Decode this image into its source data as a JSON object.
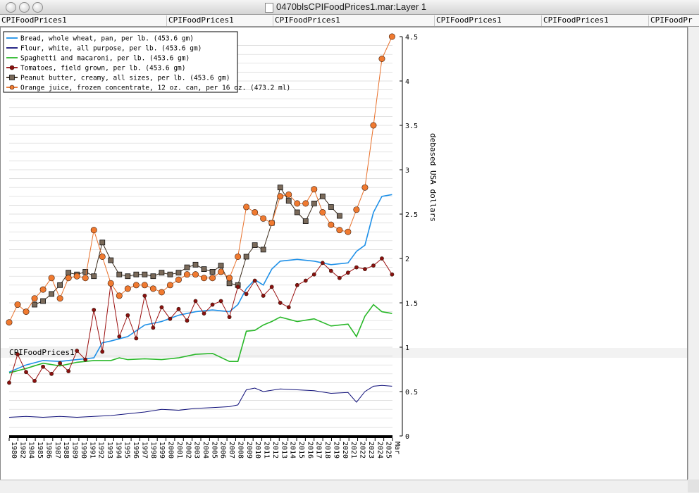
{
  "window": {
    "title": "0470blsCPIFoodPrices1.mar:Layer 1"
  },
  "tabs": [
    "CPIFoodPrices1",
    "CPIFoodPrices1",
    "CPIFoodPrices1",
    "CPIFoodPrices1",
    "CPIFoodPrices1",
    "CPIFoodPr"
  ],
  "stripe_label": "CPIFoodPrices1",
  "chart_data": {
    "type": "line",
    "ylabel": "debased USA dollars",
    "ylim": [
      0,
      4.5
    ],
    "yticks": [
      0,
      0.5,
      1,
      1.5,
      2,
      2.5,
      3,
      3.5,
      4,
      4.5
    ],
    "xlim": [
      1980,
      2025.25
    ],
    "xtick_labels": [
      "1980",
      "1982",
      "1984",
      "1985",
      "1986",
      "1987",
      "1988",
      "1989",
      "1990",
      "1991",
      "1992",
      "1993",
      "1994",
      "1995",
      "1996",
      "1997",
      "1998",
      "1999",
      "2000",
      "2001",
      "2002",
      "2003",
      "2004",
      "2005",
      "2006",
      "2007",
      "2008",
      "2009",
      "2010",
      "2011",
      "2012",
      "2013",
      "2014",
      "2015",
      "2016",
      "2017",
      "2018",
      "2019",
      "2020",
      "2021",
      "2022",
      "2023",
      "2024",
      "2025",
      "Mar"
    ],
    "legend_position": "top-left",
    "grid": true,
    "series": [
      {
        "name": "Bread, whole wheat, pan, per lb. (453.6 gm)",
        "color": "#1e90e8",
        "marker": "none",
        "x": [
          1980,
          1982,
          1984,
          1986,
          1988,
          1990,
          1991,
          1992,
          1994,
          1996,
          1998,
          2000,
          2002,
          2004,
          2006,
          2007,
          2008,
          2009,
          2010,
          2011,
          2012,
          2014,
          2016,
          2018,
          2020,
          2021,
          2022,
          2023,
          2024,
          2025.2
        ],
        "y": [
          0.72,
          0.8,
          0.85,
          0.84,
          0.86,
          0.88,
          1.05,
          1.07,
          1.12,
          1.25,
          1.29,
          1.36,
          1.4,
          1.42,
          1.4,
          1.48,
          1.66,
          1.76,
          1.7,
          1.88,
          1.97,
          1.99,
          1.97,
          1.93,
          1.95,
          2.08,
          2.15,
          2.52,
          2.7,
          2.72
        ]
      },
      {
        "name": "Flour, white, all purpose, per lb. (453.6 gm)",
        "color": "#10107a",
        "marker": "none",
        "x": [
          1980,
          1982,
          1984,
          1986,
          1988,
          1990,
          1992,
          1994,
          1996,
          1998,
          2000,
          2002,
          2004,
          2006,
          2007,
          2008,
          2009,
          2010,
          2012,
          2014,
          2016,
          2018,
          2020,
          2021,
          2022,
          2023,
          2024,
          2025.2
        ],
        "y": [
          0.21,
          0.22,
          0.21,
          0.22,
          0.21,
          0.22,
          0.23,
          0.25,
          0.27,
          0.3,
          0.29,
          0.31,
          0.32,
          0.33,
          0.35,
          0.52,
          0.54,
          0.5,
          0.53,
          0.52,
          0.51,
          0.48,
          0.49,
          0.38,
          0.5,
          0.56,
          0.57,
          0.56
        ]
      },
      {
        "name": "Spaghetti and macaroni, per lb. (453.6 gm)",
        "color": "#2ab82a",
        "marker": "none",
        "x": [
          1980,
          1982,
          1984,
          1986,
          1988,
          1990,
          1992,
          1993,
          1994,
          1996,
          1998,
          2000,
          2002,
          2004,
          2006,
          2007,
          2008,
          2009,
          2010,
          2011,
          2012,
          2014,
          2016,
          2018,
          2020,
          2021,
          2022,
          2023,
          2024,
          2025.2
        ],
        "y": [
          0.71,
          0.76,
          0.82,
          0.79,
          0.83,
          0.85,
          0.85,
          0.88,
          0.86,
          0.87,
          0.86,
          0.88,
          0.92,
          0.93,
          0.84,
          0.84,
          1.18,
          1.19,
          1.25,
          1.29,
          1.34,
          1.29,
          1.32,
          1.24,
          1.26,
          1.12,
          1.35,
          1.48,
          1.4,
          1.38
        ]
      },
      {
        "name": "Tomatoes, field grown, per lb. (453.6 gm)",
        "color": "#9a0f0f",
        "marker": "circle",
        "x": [
          1980,
          1981,
          1982,
          1983,
          1984,
          1985,
          1986,
          1987,
          1988,
          1989,
          1990,
          1991,
          1992,
          1993,
          1994,
          1995,
          1996,
          1997,
          1998,
          1999,
          2000,
          2001,
          2002,
          2003,
          2004,
          2005,
          2006,
          2007,
          2008,
          2009,
          2010,
          2011,
          2012,
          2013,
          2014,
          2015,
          2016,
          2017,
          2018,
          2019,
          2020,
          2021,
          2022,
          2023,
          2024,
          2025.2
        ],
        "y": [
          0.6,
          0.92,
          0.72,
          0.62,
          0.78,
          0.7,
          0.82,
          0.73,
          0.96,
          0.86,
          1.42,
          0.95,
          1.72,
          1.12,
          1.36,
          1.1,
          1.58,
          1.22,
          1.45,
          1.32,
          1.43,
          1.3,
          1.52,
          1.38,
          1.48,
          1.52,
          1.34,
          1.68,
          1.6,
          1.75,
          1.58,
          1.68,
          1.5,
          1.45,
          1.7,
          1.75,
          1.82,
          1.95,
          1.86,
          1.78,
          1.84,
          1.9,
          1.88,
          1.92,
          2.0,
          1.82
        ]
      },
      {
        "name": "Peanut butter, creamy, all sizes, per lb. (453.6 gm)",
        "color": "#3a2a1a",
        "marker": "square",
        "x": [
          1983,
          1984,
          1985,
          1986,
          1987,
          1988,
          1989,
          1990,
          1991,
          1992,
          1993,
          1994,
          1995,
          1996,
          1997,
          1998,
          1999,
          2000,
          2001,
          2002,
          2003,
          2004,
          2005,
          2006,
          2007,
          2008,
          2009,
          2010,
          2011,
          2012,
          2013,
          2014,
          2015,
          2016,
          2017,
          2018,
          2019
        ],
        "y": [
          1.48,
          1.52,
          1.6,
          1.7,
          1.84,
          1.82,
          1.85,
          1.8,
          2.18,
          1.98,
          1.82,
          1.8,
          1.82,
          1.82,
          1.8,
          1.84,
          1.82,
          1.84,
          1.9,
          1.93,
          1.88,
          1.85,
          1.92,
          1.72,
          1.7,
          2.02,
          2.15,
          2.1,
          2.4,
          2.8,
          2.65,
          2.52,
          2.42,
          2.62,
          2.7,
          2.58,
          2.48
        ]
      },
      {
        "name": "Orange juice, frozen concentrate, 12 oz. can, per 16 oz. (473.2 ml)",
        "color": "#e8702a",
        "marker": "circle",
        "x": [
          1980,
          1981,
          1982,
          1983,
          1984,
          1985,
          1986,
          1987,
          1988,
          1989,
          1990,
          1991,
          1992,
          1993,
          1994,
          1995,
          1996,
          1997,
          1998,
          1999,
          2000,
          2001,
          2002,
          2003,
          2004,
          2005,
          2006,
          2007,
          2008,
          2009,
          2010,
          2011,
          2012,
          2013,
          2014,
          2015,
          2016,
          2017,
          2018,
          2019,
          2020,
          2021,
          2022,
          2023,
          2024,
          2025.2
        ],
        "y": [
          1.28,
          1.48,
          1.4,
          1.55,
          1.65,
          1.78,
          1.55,
          1.78,
          1.8,
          1.78,
          2.32,
          2.02,
          1.72,
          1.58,
          1.66,
          1.7,
          1.7,
          1.66,
          1.62,
          1.7,
          1.76,
          1.82,
          1.82,
          1.78,
          1.78,
          1.85,
          1.78,
          2.02,
          2.58,
          2.52,
          2.45,
          2.4,
          2.7,
          2.72,
          2.62,
          2.62,
          2.78,
          2.52,
          2.38,
          2.32,
          2.3,
          2.55,
          2.8,
          3.5,
          4.25,
          4.5
        ]
      }
    ]
  }
}
